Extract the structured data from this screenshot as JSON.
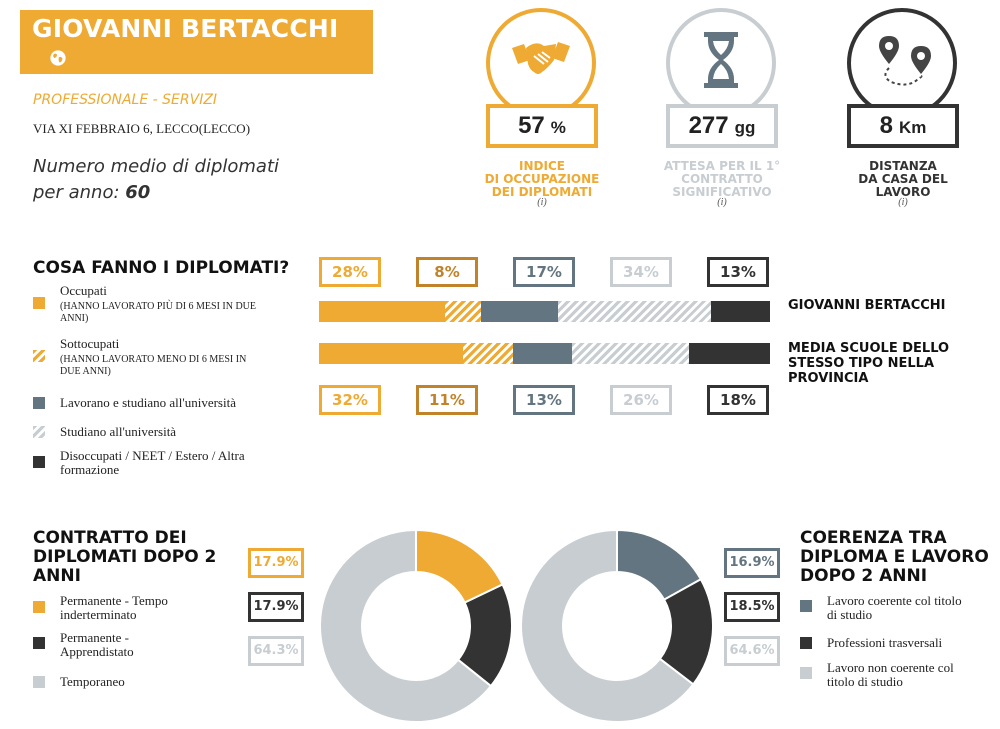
{
  "header": {
    "school_name": "GIOVANNI BERTACCHI",
    "category": "PROFESSIONALE - SERVIZI",
    "address": "VIA XI FEBBRAIO 6, LECCO(LECCO)",
    "avg_label_line1": "Numero medio di diplomati",
    "avg_label_line2": "per anno:",
    "avg_value": "60"
  },
  "kpis": [
    {
      "value": "57",
      "unit": "%",
      "label_lines": [
        "INDICE",
        "DI OCCUPAZIONE",
        "DEI DIPLOMATI"
      ],
      "info": "(i)",
      "icon": "handshake-icon",
      "color": "#EEAA33",
      "label_color": "#EEAA33"
    },
    {
      "value": "277",
      "unit": "gg",
      "label_lines": [
        "ATTESA PER IL 1°",
        "CONTRATTO",
        "SIGNIFICATIVO"
      ],
      "info": "(i)",
      "icon": "hourglass-icon",
      "color": "#C8CDD2",
      "label_color": "#C8CDD2"
    },
    {
      "value": "8",
      "unit": "Km",
      "label_lines": [
        "DISTANZA",
        "DA CASA DEL",
        "LAVORO"
      ],
      "info": "(i)",
      "icon": "map-route-icon",
      "color": "#333333",
      "label_color": "#333333"
    }
  ],
  "cosa_fanno": {
    "heading": "COSA FANNO I DIPLOMATI?",
    "legend": [
      {
        "label": "Occupati",
        "sub": "(HANNO LAVORATO PIÙ DI 6 MESI IN DUE ANNI)",
        "style": "solid-orange"
      },
      {
        "label": "Sottocupati",
        "sub": "(HANNO LAVORATO MENO DI 6 MESI IN DUE ANNI)",
        "style": "hatch-orange"
      },
      {
        "label": "Lavorano e studiano all'università",
        "sub": "",
        "style": "solid-slate"
      },
      {
        "label": "Studiano all'università",
        "sub": "",
        "style": "hatch-grey"
      },
      {
        "label": "Disoccupati / NEET / Estero / Altra formazione",
        "sub": "",
        "style": "solid-dark"
      }
    ],
    "school_label": "GIOVANNI BERTACCHI",
    "province_label": "MEDIA SCUOLE DELLO STESSO TIPO NELLA PROVINCIA"
  },
  "chart_data": [
    {
      "type": "bar",
      "stacked": true,
      "orientation": "horizontal",
      "categories": [
        "GIOVANNI BERTACCHI",
        "MEDIA SCUOLE DELLO STESSO TIPO NELLA PROVINCIA"
      ],
      "series": [
        {
          "name": "Occupati",
          "values": [
            28,
            32
          ],
          "labels": [
            "28%",
            "32%"
          ],
          "color": "#EEAA33",
          "pattern": "solid"
        },
        {
          "name": "Sottocupati",
          "values": [
            8,
            11
          ],
          "labels": [
            "8%",
            "11%"
          ],
          "color": "#EEAA33",
          "pattern": "hatch"
        },
        {
          "name": "Lavorano e studiano all'università",
          "values": [
            17,
            13
          ],
          "labels": [
            "17%",
            "13%"
          ],
          "color": "#637580",
          "pattern": "solid"
        },
        {
          "name": "Studiano all'università",
          "values": [
            34,
            26
          ],
          "labels": [
            "34%",
            "26%"
          ],
          "color": "#C8CDD2",
          "pattern": "hatch"
        },
        {
          "name": "Disoccupati / NEET / Estero / Altra formazione",
          "values": [
            13,
            18
          ],
          "labels": [
            "13%",
            "18%"
          ],
          "color": "#333333",
          "pattern": "solid"
        }
      ],
      "label_colors": [
        "#EEAA33",
        "#C0832A",
        "#637580",
        "#C8CDD2",
        "#333333"
      ]
    },
    {
      "type": "pie",
      "donut": true,
      "title": "CONTRATTO DEI DIPLOMATI DOPO 2 ANNI",
      "slices": [
        {
          "name": "Permanente - Tempo inderterminato",
          "value": 17.9,
          "label": "17.9%",
          "color": "#EEAA33"
        },
        {
          "name": "Permanente - Apprendistato",
          "value": 17.9,
          "label": "17.9%",
          "color": "#333333"
        },
        {
          "name": "Temporaneo",
          "value": 64.3,
          "label": "64.3%",
          "color": "#C8CDD2"
        }
      ]
    },
    {
      "type": "pie",
      "donut": true,
      "title": "COERENZA TRA DIPLOMA E LAVORO DOPO 2 ANNI",
      "slices": [
        {
          "name": "Lavoro coerente col titolo di studio",
          "value": 16.9,
          "label": "16.9%",
          "color": "#637580"
        },
        {
          "name": "Professioni trasversali",
          "value": 18.5,
          "label": "18.5%",
          "color": "#333333"
        },
        {
          "name": "Lavoro non coerente col titolo di studio",
          "value": 64.6,
          "label": "64.6%",
          "color": "#C8CDD2"
        }
      ]
    }
  ],
  "contratto": {
    "heading_lines": [
      "CONTRATTO DEI",
      "DIPLOMATI DOPO 2",
      "ANNI"
    ],
    "legend": [
      {
        "line1": "Permanente - Tempo",
        "line2": "inderterminato"
      },
      {
        "line1": "Permanente -",
        "line2": "Apprendistato"
      },
      {
        "line1": "Temporaneo",
        "line2": ""
      }
    ]
  },
  "coerenza": {
    "heading_lines": [
      "COERENZA TRA",
      "DIPLOMA E LAVORO",
      "DOPO 2 ANNI"
    ],
    "legend": [
      {
        "line1": "Lavoro coerente col titolo",
        "line2": "di studio"
      },
      {
        "line1": "Professioni trasversali",
        "line2": ""
      },
      {
        "line1": "Lavoro non coerente col",
        "line2": "titolo di studio"
      }
    ]
  }
}
